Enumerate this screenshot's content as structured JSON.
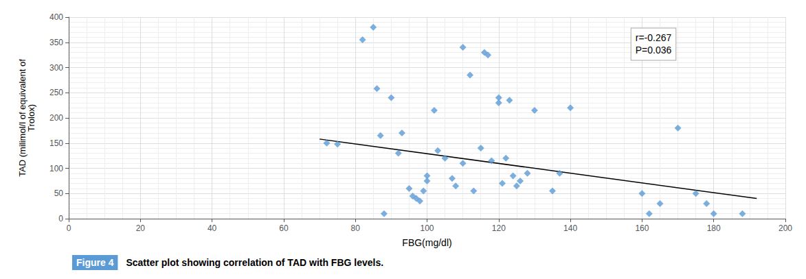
{
  "chart_data": {
    "type": "scatter",
    "title": "Figure 4",
    "subtitle": "Scatter plot showing correlation of TAD with FBG levels.",
    "xlabel": "FBG(mg/dl)",
    "ylabel": "TAD (milimol/l of equivalent of\nTrolox)",
    "annotations": [
      {
        "text": "r=-0.267\nP=0.036",
        "x": 157,
        "y": 315
      }
    ],
    "series": [
      {
        "type": "scatter",
        "color": "#5b9bd5",
        "marker": "diamond",
        "x": [
          72,
          75,
          82,
          85,
          86,
          87,
          88,
          90,
          92,
          93,
          95,
          96,
          97,
          98,
          99,
          100,
          100,
          102,
          103,
          105,
          107,
          108,
          110,
          110,
          112,
          113,
          115,
          116,
          117,
          118,
          120,
          120,
          121,
          122,
          123,
          124,
          125,
          126,
          128,
          130,
          135,
          137,
          140,
          160,
          162,
          165,
          170,
          175,
          178,
          180,
          188
        ],
        "values": [
          150,
          148,
          355,
          380,
          258,
          165,
          10,
          240,
          130,
          170,
          60,
          45,
          40,
          35,
          55,
          85,
          75,
          215,
          135,
          120,
          80,
          65,
          340,
          110,
          285,
          55,
          140,
          330,
          325,
          115,
          240,
          230,
          70,
          120,
          235,
          85,
          65,
          75,
          90,
          215,
          55,
          90,
          220,
          50,
          10,
          30,
          180,
          50,
          30,
          10,
          10
        ]
      },
      {
        "type": "line",
        "color": "black",
        "line_style": "solid",
        "x": [
          70,
          192
        ],
        "values": [
          158,
          40
        ]
      }
    ],
    "xlim": [
      0,
      200
    ],
    "ylim": [
      0,
      400
    ],
    "xticks": [
      0,
      20,
      40,
      60,
      80,
      100,
      120,
      140,
      160,
      180,
      200
    ],
    "yticks": [
      0,
      50,
      100,
      150,
      200,
      250,
      300,
      350,
      400
    ],
    "grid": true
  }
}
